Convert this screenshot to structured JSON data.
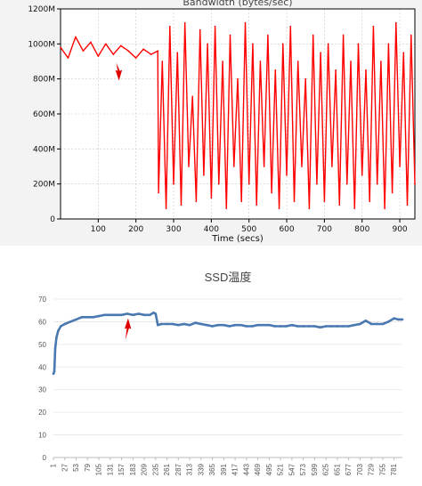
{
  "charts": {
    "top": {
      "title": "Bandwidth (bytes/sec)",
      "xlabel": "Time (secs)"
    },
    "bottom": {
      "title": "SSD温度"
    }
  },
  "chart_data": [
    {
      "type": "line",
      "title": "Bandwidth (bytes/sec)",
      "xlabel": "Time (secs)",
      "ylabel": "",
      "xlim": [
        0,
        940
      ],
      "ylim": [
        0,
        1200
      ],
      "x_ticks": [
        100,
        200,
        300,
        400,
        500,
        600,
        700,
        800,
        900
      ],
      "y_ticks": [
        0,
        200,
        400,
        600,
        800,
        1000,
        1200
      ],
      "y_tick_labels": [
        "0",
        "200M",
        "400M",
        "600M",
        "800M",
        "1000M",
        "1200M"
      ],
      "grid": true,
      "color": "#ff0000",
      "annotation": {
        "type": "arrow",
        "color": "#e00000",
        "x": 155,
        "y": 790
      },
      "series": [
        {
          "unit": "M",
          "x": [
            0,
            20,
            40,
            60,
            80,
            100,
            120,
            140,
            160,
            180,
            200,
            220,
            240,
            258,
            260,
            270,
            280,
            290,
            300,
            310,
            320,
            330,
            340,
            350,
            360,
            370,
            380,
            390,
            400,
            410,
            420,
            430,
            440,
            450,
            460,
            470,
            480,
            490,
            500,
            510,
            520,
            530,
            540,
            550,
            560,
            570,
            580,
            590,
            600,
            610,
            620,
            630,
            640,
            650,
            660,
            670,
            680,
            690,
            700,
            710,
            720,
            730,
            740,
            750,
            760,
            770,
            780,
            790,
            800,
            810,
            820,
            830,
            840,
            850,
            860,
            870,
            880,
            890,
            900,
            910,
            920,
            930,
            940
          ],
          "values": [
            980,
            920,
            1040,
            960,
            1010,
            930,
            1000,
            940,
            990,
            960,
            920,
            970,
            940,
            960,
            150,
            900,
            60,
            1100,
            200,
            950,
            80,
            1120,
            300,
            700,
            100,
            1080,
            250,
            1000,
            120,
            1100,
            200,
            900,
            60,
            1050,
            300,
            800,
            100,
            1120,
            200,
            1000,
            80,
            900,
            300,
            1050,
            150,
            850,
            60,
            1000,
            250,
            1100,
            100,
            900,
            300,
            800,
            60,
            1050,
            200,
            950,
            100,
            1000,
            300,
            850,
            80,
            1050,
            200,
            900,
            60,
            1000,
            250,
            850,
            100,
            1100,
            200,
            900,
            60,
            1000,
            150,
            1120,
            300,
            950,
            80,
            1050,
            200
          ]
        }
      ]
    },
    {
      "type": "line",
      "title": "SSD温度",
      "xlabel": "",
      "ylabel": "",
      "xlim": [
        1,
        800
      ],
      "ylim": [
        0,
        70
      ],
      "y_ticks": [
        0,
        10,
        20,
        30,
        40,
        50,
        60,
        70
      ],
      "categories": [
        "1",
        "27",
        "53",
        "79",
        "105",
        "131",
        "157",
        "183",
        "209",
        "235",
        "261",
        "287",
        "313",
        "339",
        "365",
        "391",
        "417",
        "443",
        "469",
        "495",
        "521",
        "547",
        "573",
        "599",
        "625",
        "651",
        "677",
        "703",
        "729",
        "755",
        "781"
      ],
      "grid": true,
      "color": "#4a78b0",
      "annotation": {
        "type": "arrow",
        "color": "#e00000",
        "x": 172,
        "y": 56
      },
      "series": [
        {
          "x": [
            1,
            3,
            5,
            8,
            12,
            18,
            27,
            40,
            53,
            66,
            79,
            92,
            105,
            118,
            131,
            144,
            157,
            170,
            183,
            196,
            209,
            222,
            230,
            235,
            240,
            248,
            261,
            274,
            287,
            300,
            313,
            326,
            339,
            352,
            365,
            378,
            391,
            404,
            417,
            430,
            443,
            456,
            469,
            482,
            495,
            508,
            521,
            534,
            547,
            560,
            573,
            586,
            599,
            612,
            625,
            638,
            651,
            664,
            677,
            690,
            703,
            716,
            729,
            742,
            755,
            768,
            781,
            790,
            800
          ],
          "values": [
            37,
            38,
            48,
            53,
            56,
            58,
            59,
            60,
            61,
            62,
            62,
            62,
            62.5,
            63,
            63,
            63,
            63,
            63.5,
            63,
            63.5,
            63,
            63,
            64,
            63.5,
            58.5,
            59,
            59,
            59,
            58.5,
            59,
            58.5,
            59.5,
            59,
            58.5,
            58,
            58.5,
            58.5,
            58,
            58.5,
            58.5,
            58,
            58,
            58.5,
            58.5,
            58.5,
            58,
            58,
            58,
            58.5,
            58,
            58,
            58,
            58,
            57.5,
            58,
            58,
            58,
            58,
            58,
            58.5,
            59,
            60.5,
            59,
            59,
            59,
            60,
            61.5,
            61,
            61
          ]
        }
      ]
    }
  ]
}
